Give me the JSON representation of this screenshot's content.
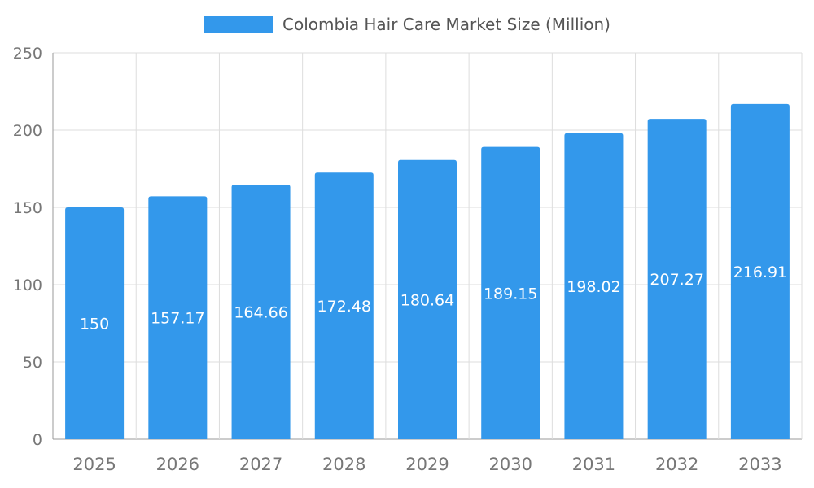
{
  "legend": {
    "label": "Colombia Hair Care Market Size (Million)"
  },
  "chart_data": {
    "type": "bar",
    "title": "Colombia Hair Care Market Size (Million)",
    "categories": [
      "2025",
      "2026",
      "2027",
      "2028",
      "2029",
      "2030",
      "2031",
      "2032",
      "2033"
    ],
    "values": [
      150,
      157.17,
      164.66,
      172.48,
      180.64,
      189.15,
      198.02,
      207.27,
      216.91
    ],
    "value_labels": [
      "150",
      "157.17",
      "164.66",
      "172.48",
      "180.64",
      "189.15",
      "198.02",
      "207.27",
      "216.91"
    ],
    "xlabel": "",
    "ylabel": "",
    "ylim": [
      0,
      250
    ],
    "y_ticks": [
      0,
      50,
      100,
      150,
      200,
      250
    ],
    "grid": true,
    "legend_position": "top",
    "colors": {
      "bar": "#3398eb",
      "grid": "#dddddd",
      "axis_line": "#999999",
      "tick_text": "#777777",
      "title_text": "#555555",
      "value_label": "#ffffff"
    }
  }
}
